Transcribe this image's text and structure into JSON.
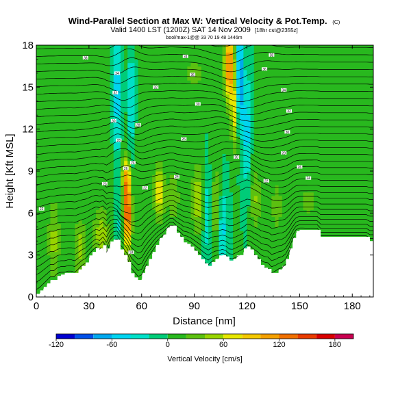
{
  "chart_data": {
    "type": "heatmap",
    "title": "Wind-Parallel Section at Max W: Vertical Velocity & Pot.Temp.",
    "title_tag": "(C)",
    "subtitle": "Valid 1400 LST (1200Z) SAT 14 Nov 2009",
    "subtitle_tag": "[18hr cst@2355z]",
    "subtitle2": "bool/max-1@@ 33 70 19 48 1446m",
    "xlabel": "Distance [nm]",
    "ylabel": "Height [Kft MSL]",
    "xlim": [
      0,
      192
    ],
    "ylim": [
      0,
      18
    ],
    "xticks": [
      "0",
      "30",
      "60",
      "90",
      "120",
      "150",
      "180"
    ],
    "xtick_values": [
      0,
      30,
      60,
      90,
      120,
      150,
      180
    ],
    "yticks": [
      "0",
      "3",
      "6",
      "9",
      "12",
      "15",
      "18"
    ],
    "ytick_values": [
      0,
      3,
      6,
      9,
      12,
      15,
      18
    ],
    "colorbar": {
      "label": "Vertical Velocity [cm/s]",
      "range": [
        -120,
        200
      ],
      "ticks": [
        "-120",
        "-60",
        "0",
        "60",
        "120",
        "180"
      ],
      "tick_values": [
        -120,
        -60,
        0,
        60,
        120,
        180
      ],
      "bins": [
        -120,
        -100,
        -80,
        -60,
        -40,
        -20,
        0,
        20,
        40,
        60,
        80,
        100,
        120,
        140,
        160,
        180,
        200
      ],
      "colors": [
        "#0000d0",
        "#0050e8",
        "#00a8ee",
        "#00d4f0",
        "#00e0c8",
        "#00cc78",
        "#28b81e",
        "#5cc010",
        "#98d400",
        "#e6e600",
        "#f4c800",
        "#f4a000",
        "#f07000",
        "#e83c00",
        "#d80000",
        "#c80050"
      ]
    },
    "terrain": {
      "x": [
        0,
        2,
        4,
        6,
        8,
        10,
        12,
        14,
        16,
        18,
        20,
        22,
        24,
        26,
        28,
        30,
        32,
        34,
        36,
        38,
        40,
        42,
        44,
        46,
        48,
        50,
        52,
        54,
        56,
        58,
        60,
        62,
        64,
        66,
        68,
        70,
        72,
        74,
        76,
        78,
        80,
        82,
        84,
        86,
        88,
        90,
        92,
        94,
        96,
        98,
        100,
        102,
        104,
        106,
        108,
        110,
        112,
        114,
        116,
        118,
        120,
        122,
        124,
        126,
        128,
        130,
        132,
        134,
        136,
        138,
        140,
        142,
        144,
        146,
        148,
        150,
        152,
        154,
        156,
        158,
        160,
        162,
        164,
        166,
        168,
        170,
        172,
        174,
        176,
        178,
        180,
        182,
        184,
        186,
        188,
        190,
        192
      ],
      "height": [
        0.1,
        0.3,
        0.6,
        0.9,
        1.2,
        1.2,
        1.5,
        1.6,
        1.6,
        1.7,
        1.7,
        1.6,
        1.9,
        2.2,
        2.4,
        2.8,
        3.2,
        3.5,
        3.3,
        3.7,
        3.0,
        3.8,
        4.1,
        4.1,
        3.4,
        3.0,
        2.5,
        1.7,
        1.4,
        1.1,
        1.3,
        2.0,
        2.6,
        3.1,
        3.6,
        4.0,
        4.3,
        4.7,
        5.1,
        5.1,
        4.6,
        4.3,
        3.9,
        3.8,
        3.6,
        3.3,
        3.0,
        2.7,
        2.4,
        2.2,
        2.5,
        2.7,
        2.8,
        3.0,
        2.9,
        2.6,
        2.6,
        2.8,
        3.0,
        3.2,
        3.6,
        3.4,
        3.0,
        2.7,
        2.3,
        2.1,
        2.0,
        1.6,
        1.7,
        1.9,
        2.0,
        2.3,
        3.0,
        3.9,
        4.6,
        4.8,
        4.8,
        4.8,
        4.8,
        4.8,
        4.8,
        4.3,
        4.3,
        4.3,
        4.3,
        4.3,
        4.3,
        4.3,
        4.3,
        4.3,
        4.3,
        4.3,
        4.3,
        4.3,
        4.3,
        4.0,
        4.0
      ]
    },
    "vertical_velocity_features": [
      {
        "x": 0,
        "y": 9,
        "sx": 60,
        "sy": 14,
        "value": 10
      },
      {
        "x": 10,
        "y": 4,
        "sx": 3,
        "sy": 2.5,
        "value": 38
      },
      {
        "x": 25,
        "y": 3.5,
        "sx": 3.5,
        "sy": 1.8,
        "value": 42
      },
      {
        "x": 37,
        "y": 4.5,
        "sx": 4,
        "sy": 1.8,
        "value": 48
      },
      {
        "x": 52,
        "y": 6,
        "sx": 2.2,
        "sy": 2.6,
        "value": 150
      },
      {
        "x": 51,
        "y": 8.7,
        "sx": 2.5,
        "sy": 1.4,
        "value": 65
      },
      {
        "x": 47,
        "y": 5,
        "sx": 2,
        "sy": 2.2,
        "value": -25
      },
      {
        "x": 46,
        "y": 14.5,
        "sx": 2.2,
        "sy": 5,
        "value": -60
      },
      {
        "x": 54,
        "y": 14,
        "sx": 2,
        "sy": 5,
        "value": -40
      },
      {
        "x": 70,
        "y": 7.5,
        "sx": 2.8,
        "sy": 2,
        "value": 75
      },
      {
        "x": 78,
        "y": 7.2,
        "sx": 3.5,
        "sy": 1.8,
        "value": 40
      },
      {
        "x": 92,
        "y": 7,
        "sx": 3.5,
        "sy": 2.5,
        "value": 55
      },
      {
        "x": 97,
        "y": 6,
        "sx": 2,
        "sy": 3,
        "value": -40
      },
      {
        "x": 106,
        "y": 5,
        "sx": 2.5,
        "sy": 3,
        "value": -55
      },
      {
        "x": 103,
        "y": 6.5,
        "sx": 3,
        "sy": 3,
        "value": 45
      },
      {
        "x": 110,
        "y": 16.5,
        "sx": 2.8,
        "sy": 2.5,
        "value": 130
      },
      {
        "x": 113,
        "y": 13,
        "sx": 2.2,
        "sy": 2.5,
        "value": 65
      },
      {
        "x": 116,
        "y": 15.5,
        "sx": 1.8,
        "sy": 3.5,
        "value": -100
      },
      {
        "x": 120,
        "y": 12,
        "sx": 2,
        "sy": 4,
        "value": -55
      },
      {
        "x": 125,
        "y": 7,
        "sx": 3,
        "sy": 2.5,
        "value": 40
      },
      {
        "x": 137,
        "y": 6.5,
        "sx": 3,
        "sy": 2,
        "value": 35
      },
      {
        "x": 155,
        "y": 6.8,
        "sx": 8,
        "sy": 1.5,
        "value": 25
      },
      {
        "x": 90,
        "y": 16,
        "sx": 12,
        "sy": 2,
        "value": 22
      }
    ],
    "theta_contour_labels": [
      {
        "text": "22",
        "x": 3,
        "y": 6.3
      },
      {
        "text": "38",
        "x": 28,
        "y": 17.1
      },
      {
        "text": "34",
        "x": 46,
        "y": 16
      },
      {
        "text": "32",
        "x": 45,
        "y": 14.6
      },
      {
        "text": "30",
        "x": 44,
        "y": 12.6
      },
      {
        "text": "28",
        "x": 58,
        "y": 12.3
      },
      {
        "text": "32",
        "x": 68,
        "y": 15
      },
      {
        "text": "34",
        "x": 85,
        "y": 17.2
      },
      {
        "text": "36",
        "x": 89,
        "y": 15.9
      },
      {
        "text": "30",
        "x": 92,
        "y": 13.8
      },
      {
        "text": "28",
        "x": 47,
        "y": 11.2
      },
      {
        "text": "26",
        "x": 51,
        "y": 9.2
      },
      {
        "text": "24",
        "x": 55,
        "y": 9.6
      },
      {
        "text": "23",
        "x": 39,
        "y": 8.1
      },
      {
        "text": "22",
        "x": 62,
        "y": 7.8
      },
      {
        "text": "24",
        "x": 80,
        "y": 8.6
      },
      {
        "text": "26",
        "x": 84,
        "y": 11.3
      },
      {
        "text": "28",
        "x": 114,
        "y": 10
      },
      {
        "text": "18",
        "x": 54,
        "y": 3.2
      },
      {
        "text": "38",
        "x": 134,
        "y": 17.3
      },
      {
        "text": "36",
        "x": 130,
        "y": 16.3
      },
      {
        "text": "34",
        "x": 141,
        "y": 14.8
      },
      {
        "text": "32",
        "x": 144,
        "y": 13.3
      },
      {
        "text": "30",
        "x": 143,
        "y": 11.8
      },
      {
        "text": "28",
        "x": 141,
        "y": 10.3
      },
      {
        "text": "26",
        "x": 150,
        "y": 9.3
      },
      {
        "text": "24",
        "x": 155,
        "y": 8.5
      },
      {
        "text": "22",
        "x": 131,
        "y": 8.3
      }
    ]
  }
}
